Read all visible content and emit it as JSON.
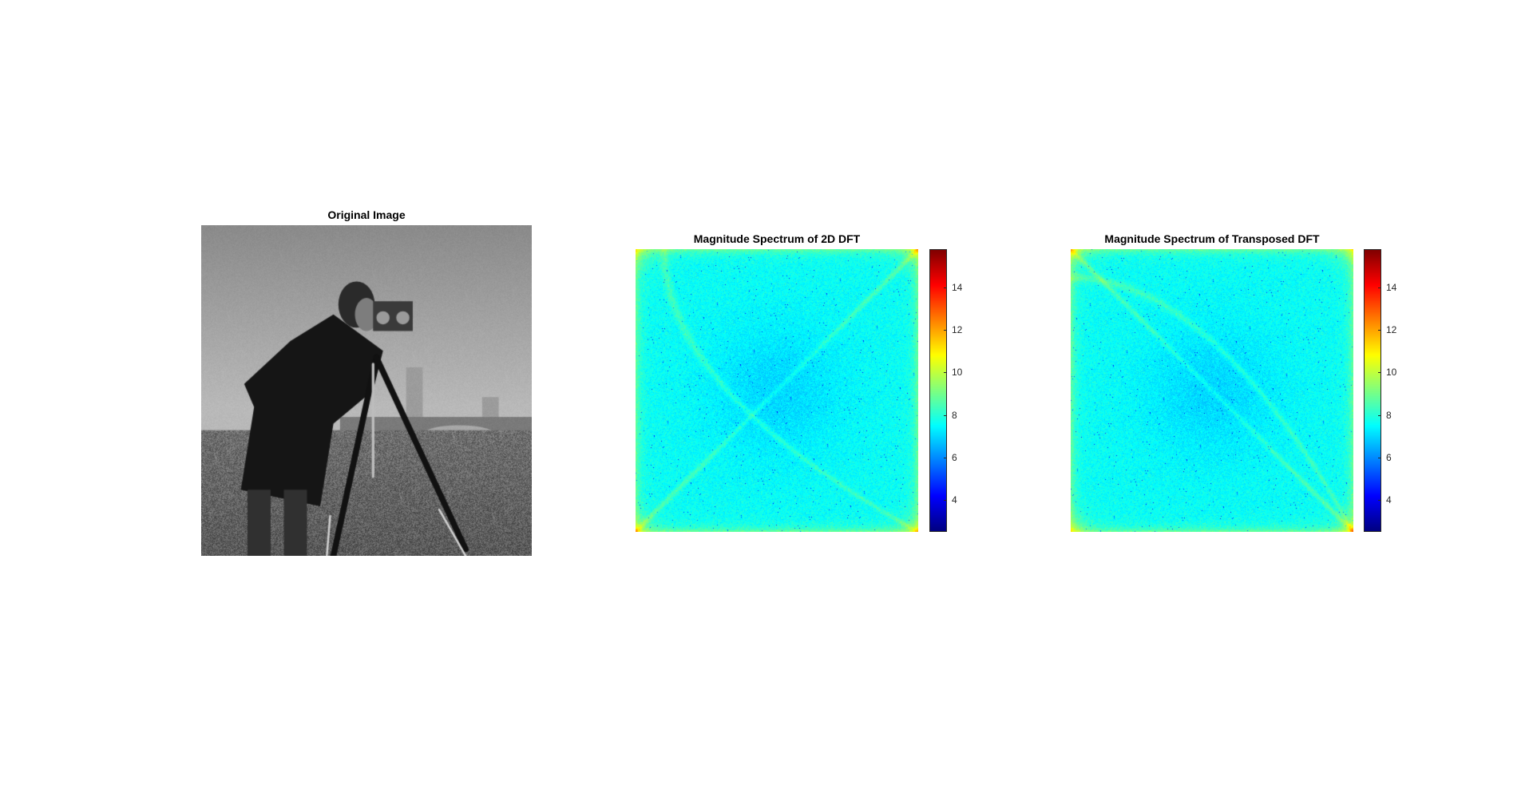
{
  "chart_data": [
    {
      "type": "image",
      "title": "Original Image",
      "content": "grayscale photograph",
      "colormap": "gray"
    },
    {
      "type": "heatmap",
      "title": "Magnitude Spectrum of 2D DFT",
      "colormap": "jet",
      "colorbar": {
        "ticks": [
          4,
          6,
          8,
          10,
          12,
          14
        ],
        "range": [
          2.5,
          15.8
        ]
      },
      "diagonal_streaks": "main"
    },
    {
      "type": "heatmap",
      "title": "Magnitude Spectrum of Transposed DFT",
      "colormap": "jet",
      "colorbar": {
        "ticks": [
          4,
          6,
          8,
          10,
          12,
          14
        ],
        "range": [
          2.5,
          15.8
        ]
      },
      "diagonal_streaks": "anti"
    }
  ]
}
